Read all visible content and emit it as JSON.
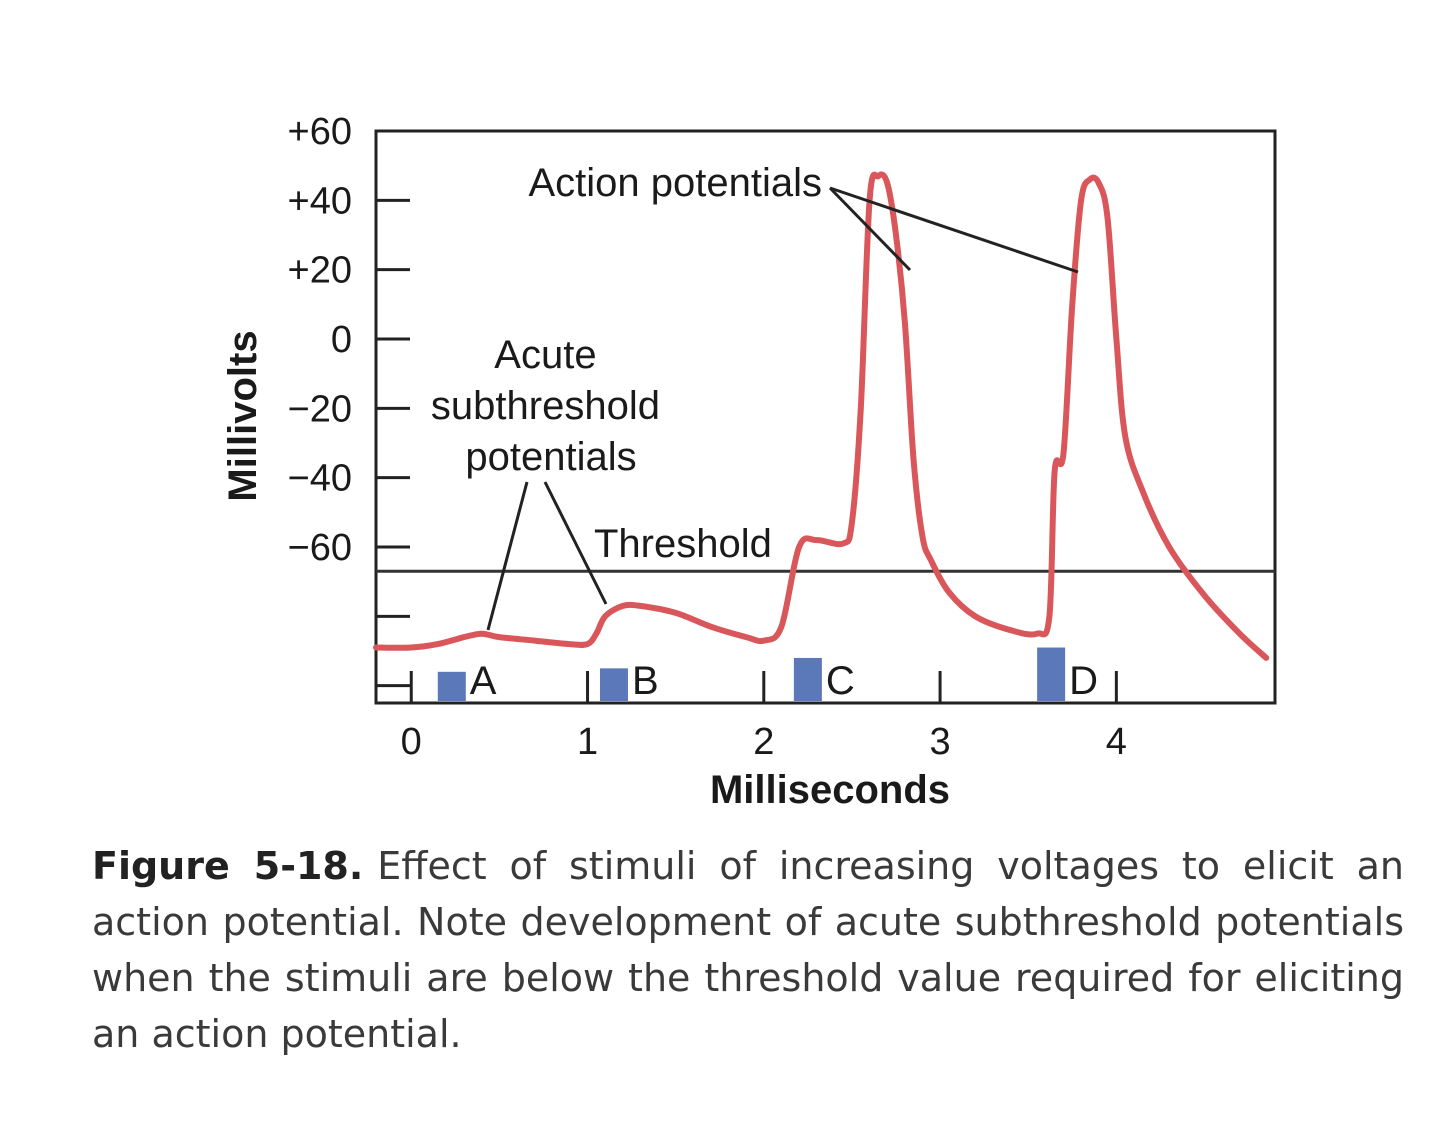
{
  "chart_data": {
    "type": "line",
    "xlabel": "Milliseconds",
    "ylabel": "Millivolts",
    "xlim": [
      -0.2,
      4.9
    ],
    "ylim": [
      -105,
      60
    ],
    "x_ticks": [
      {
        "value": 0,
        "label": "0"
      },
      {
        "value": 1,
        "label": "1"
      },
      {
        "value": 2,
        "label": "2"
      },
      {
        "value": 3,
        "label": "3"
      },
      {
        "value": 4,
        "label": "4"
      }
    ],
    "y_ticks": [
      {
        "value": 60,
        "label": "+60"
      },
      {
        "value": 40,
        "label": "+40"
      },
      {
        "value": 20,
        "label": "+20"
      },
      {
        "value": 0,
        "label": "0"
      },
      {
        "value": -20,
        "label": "−20"
      },
      {
        "value": -40,
        "label": "−40"
      },
      {
        "value": -60,
        "label": "−60"
      },
      {
        "value": -80,
        "label": ""
      },
      {
        "value": -100,
        "label": ""
      }
    ],
    "threshold": -67,
    "grid": false,
    "series": [
      {
        "color": "#d9575b",
        "x": [
          -0.2,
          0.0,
          0.15,
          0.3,
          0.4,
          0.5,
          0.7,
          0.9,
          1.0,
          1.05,
          1.1,
          1.2,
          1.3,
          1.5,
          1.7,
          1.9,
          2.0,
          2.1,
          2.2,
          2.3,
          2.45,
          2.5,
          2.55,
          2.6,
          2.65,
          2.7,
          2.75,
          2.8,
          2.85,
          2.9,
          2.95,
          3.05,
          3.2,
          3.4,
          3.55,
          3.62,
          3.65,
          3.7,
          3.75,
          3.8,
          3.85,
          3.9,
          3.95,
          4.0,
          4.05,
          4.15,
          4.3,
          4.5,
          4.7,
          4.85
        ],
        "y": [
          -89,
          -89,
          -88,
          -86,
          -85,
          -86,
          -87,
          -88,
          -88,
          -85,
          -80,
          -77,
          -77,
          -79,
          -83,
          -86,
          -87,
          -83,
          -60,
          -58,
          -59,
          -53,
          -20,
          40,
          47,
          45,
          30,
          5,
          -35,
          -57,
          -64,
          -73,
          -80,
          -84,
          -85,
          -80,
          -38,
          -33,
          10,
          40,
          46,
          45,
          35,
          0,
          -28,
          -44,
          -60,
          -74,
          -85,
          -92
        ]
      }
    ],
    "stimuli": [
      {
        "label": "A",
        "x": 0.23,
        "y_top": -96
      },
      {
        "label": "B",
        "x": 1.15,
        "y_top": -95
      },
      {
        "label": "C",
        "x": 2.25,
        "y_top": -92
      },
      {
        "label": "D",
        "x": 3.63,
        "y_top": -89
      }
    ],
    "annotations": [
      {
        "text": "Action potentials",
        "x": 1.5,
        "y": 44
      },
      {
        "lines": [
          "Acute",
          "subthreshold",
          "potentials"
        ],
        "x": 0.7,
        "y": 0
      },
      {
        "text": "Threshold",
        "x": 1.0,
        "y": -58
      }
    ]
  },
  "caption": {
    "figure_number": "Figure 5-18.",
    "text": "Effect of stimuli of increasing voltages to elicit an action potential. Note development of acute subthreshold potentials when the stimuli are below the threshold value required for eliciting an action potential."
  }
}
